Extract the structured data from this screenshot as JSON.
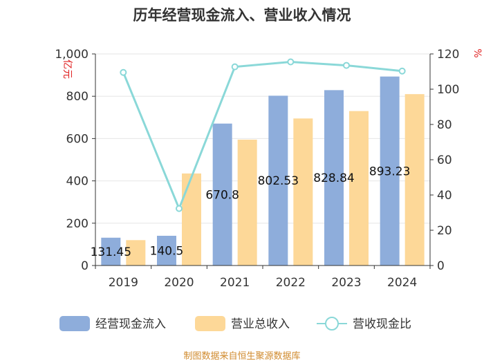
{
  "chart_data": {
    "type": "bar",
    "title": "历年经营现金流入、营业收入情况",
    "categories": [
      "2019",
      "2020",
      "2021",
      "2022",
      "2023",
      "2024"
    ],
    "series": [
      {
        "name": "经营现金流入",
        "axis": "left",
        "color": "#8eaddb",
        "values": [
          131.45,
          140.5,
          670.8,
          802.53,
          828.84,
          893.23
        ]
      },
      {
        "name": "营业总收入",
        "axis": "left",
        "color": "#fdd898",
        "values": [
          120,
          435,
          595,
          695,
          730,
          810
        ]
      },
      {
        "name": "营收现金比",
        "axis": "right",
        "type": "line",
        "color": "#8ad8d8",
        "values": [
          109.5,
          32.3,
          112.7,
          115.5,
          113.5,
          110.3
        ]
      }
    ],
    "data_labels": [
      "131.45",
      "140.5",
      "670.8",
      "802.53",
      "828.84",
      "893.23"
    ],
    "y_left": {
      "label": "亿元",
      "min": 0,
      "max": 1000,
      "ticks": [
        "0",
        "200",
        "400",
        "600",
        "800",
        "1,000"
      ]
    },
    "y_right": {
      "label": "%",
      "min": 0,
      "max": 120,
      "ticks": [
        "0",
        "20",
        "40",
        "60",
        "80",
        "100",
        "120"
      ]
    },
    "legend": "bottom",
    "grid": true
  },
  "footer": "制图数据来自恒生聚源数据库"
}
